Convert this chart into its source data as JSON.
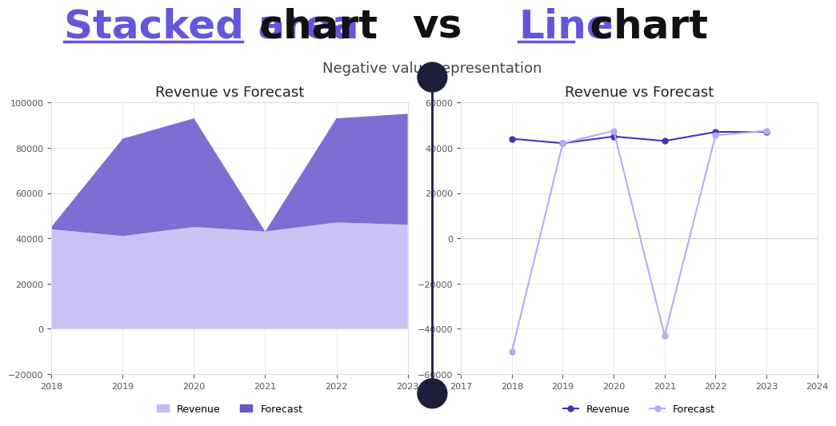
{
  "title_color_highlight": "#6655dd",
  "title_color_normal": "#111111",
  "background_color": "#ffffff",
  "subtitle": "Negative value representation",
  "years": [
    2018,
    2019,
    2020,
    2021,
    2022,
    2023
  ],
  "revenue_stacked": [
    44000,
    41000,
    45000,
    43000,
    47000,
    46000
  ],
  "forecast_extra": [
    1000,
    43000,
    48000,
    0,
    46000,
    49000
  ],
  "revenue_line": [
    44000,
    42000,
    45000,
    43000,
    47000,
    47000
  ],
  "forecast_line": [
    -50000,
    42000,
    47500,
    -43000,
    45500,
    47500
  ],
  "area_revenue_color": "#c5b8f5",
  "area_forecast_color": "#6655cc",
  "line_revenue_color": "#4433bb",
  "line_forecast_color": "#b8a8f0",
  "chart_title": "Revenue vs Forecast",
  "chart_bg": "#ffffff",
  "chart_border": "#dddddd",
  "left_ylim": [
    -20000,
    100000
  ],
  "left_yticks": [
    -20000,
    0,
    20000,
    40000,
    60000,
    80000,
    100000
  ],
  "left_xticks": [
    2018,
    2019,
    2020,
    2021,
    2022,
    2023
  ],
  "right_ylim": [
    -60000,
    60000
  ],
  "right_yticks": [
    -60000,
    -40000,
    -20000,
    0,
    20000,
    40000,
    60000
  ],
  "right_xticks": [
    2017,
    2018,
    2019,
    2020,
    2021,
    2022,
    2023,
    2024
  ],
  "divider_color": "#1e1e3a",
  "stacked_area_label": "Stacked area",
  "chart_label": " chart",
  "vs_label": "vs",
  "line_label": "Line",
  "legend_revenue": "Revenue",
  "legend_forecast": "Forecast"
}
